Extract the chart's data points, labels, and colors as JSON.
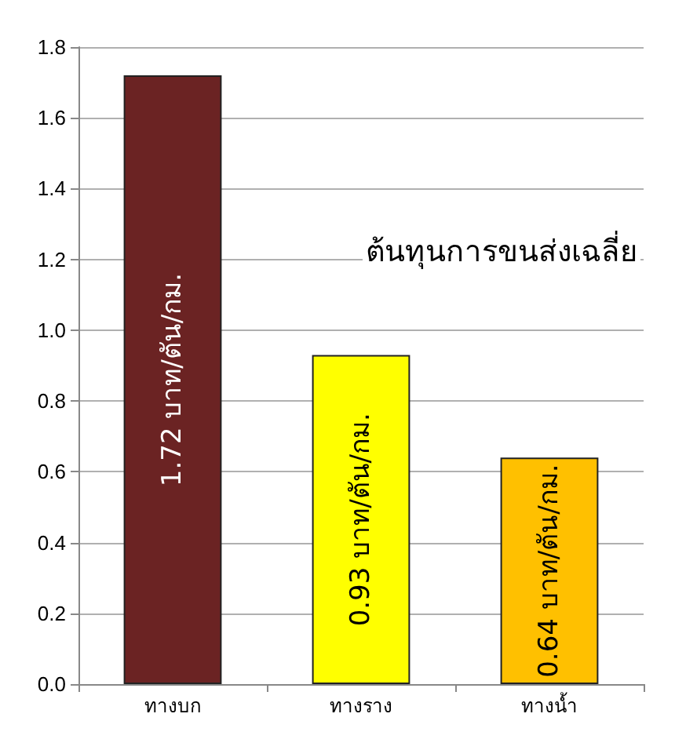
{
  "chart_data": {
    "type": "bar",
    "categories": [
      "ทางบก",
      "ทางราง",
      "ทางน้ำ"
    ],
    "values": [
      1.72,
      0.93,
      0.64
    ],
    "colors": [
      "#6b2323",
      "#ffff00",
      "#ffc000"
    ],
    "value_labels": [
      "1.72 บาท/ตัน/กม.",
      "0.93 บาท/ตัน/กม.",
      "0.64 บาท/ตัน/กม."
    ],
    "annotations": [
      "ต้นทุนการขนส่งเฉลี่ย"
    ],
    "ylim": [
      0,
      1.8
    ],
    "yticks": [
      {
        "value": 0,
        "label": "0.0"
      },
      0.2,
      0.4,
      0.6,
      0.8,
      {
        "value": 1,
        "label": "1.0"
      },
      1.2,
      1.4,
      1.6,
      1.8
    ],
    "grid": "y"
  }
}
